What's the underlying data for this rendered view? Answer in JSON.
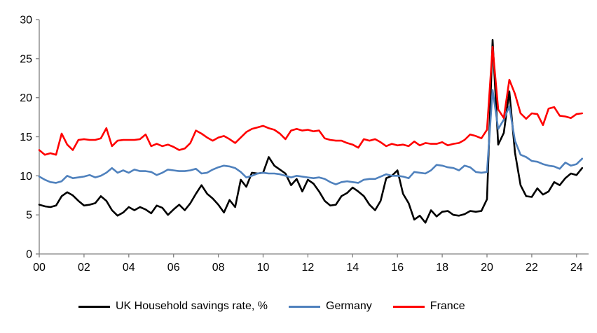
{
  "chart_data": {
    "type": "line",
    "title": "",
    "xlabel": "",
    "ylabel": "",
    "x_start": 2000.0,
    "x_step_years": 0.25,
    "xlim": [
      2000,
      2024.55
    ],
    "ylim": [
      0,
      30
    ],
    "grid": false,
    "legend_position": "bottom",
    "x_ticks": {
      "values": [
        2000,
        2002,
        2004,
        2006,
        2008,
        2010,
        2012,
        2014,
        2016,
        2018,
        2020,
        2022,
        2024
      ],
      "labels": [
        "00",
        "02",
        "04",
        "06",
        "08",
        "10",
        "12",
        "14",
        "16",
        "18",
        "20",
        "22",
        "24"
      ]
    },
    "y_ticks": {
      "values": [
        0,
        5,
        10,
        15,
        20,
        25,
        30
      ],
      "labels": [
        "0",
        "5",
        "10",
        "15",
        "20",
        "25",
        "30"
      ]
    },
    "series": [
      {
        "name": "UK Household savings rate, %",
        "slug": "uk",
        "color": "#000000",
        "values": [
          6.3,
          6.1,
          6.0,
          6.2,
          7.4,
          7.9,
          7.5,
          6.8,
          6.2,
          6.3,
          6.5,
          7.4,
          6.8,
          5.6,
          4.9,
          5.3,
          6.0,
          5.6,
          6.0,
          5.7,
          5.2,
          6.2,
          5.9,
          5.0,
          5.7,
          6.3,
          5.6,
          6.5,
          7.7,
          8.8,
          7.7,
          7.1,
          6.3,
          5.3,
          6.9,
          6.0,
          9.5,
          8.6,
          10.4,
          10.3,
          10.4,
          12.4,
          11.3,
          10.8,
          10.3,
          8.8,
          9.6,
          8.0,
          9.5,
          9.0,
          8.0,
          6.8,
          6.2,
          6.3,
          7.4,
          7.8,
          8.5,
          8.0,
          7.4,
          6.3,
          5.6,
          6.8,
          9.7,
          10.0,
          10.7,
          7.7,
          6.5,
          4.4,
          4.9,
          4.0,
          5.6,
          4.8,
          5.4,
          5.5,
          5.0,
          4.9,
          5.1,
          5.5,
          5.4,
          5.5,
          7.0,
          27.4,
          14.0,
          15.5,
          20.8,
          13.0,
          8.8,
          7.4,
          7.3,
          8.4,
          7.6,
          8.0,
          9.2,
          8.8,
          9.7,
          10.3,
          10.1,
          11.0
        ]
      },
      {
        "name": "Germany",
        "slug": "germany",
        "color": "#4F81BD",
        "values": [
          9.9,
          9.5,
          9.2,
          9.1,
          9.3,
          10.0,
          9.7,
          9.8,
          9.9,
          10.1,
          9.8,
          10.0,
          10.4,
          11.0,
          10.4,
          10.7,
          10.4,
          10.8,
          10.6,
          10.6,
          10.5,
          10.1,
          10.4,
          10.8,
          10.7,
          10.6,
          10.6,
          10.7,
          10.9,
          10.3,
          10.4,
          10.8,
          11.1,
          11.3,
          11.2,
          11.0,
          10.5,
          9.8,
          10.0,
          10.3,
          10.4,
          10.3,
          10.3,
          10.2,
          10.0,
          9.8,
          10.0,
          9.9,
          9.8,
          9.7,
          9.8,
          9.6,
          9.2,
          8.9,
          9.2,
          9.3,
          9.2,
          9.1,
          9.5,
          9.6,
          9.6,
          9.9,
          10.2,
          10.0,
          10.0,
          9.9,
          9.7,
          10.5,
          10.4,
          10.3,
          10.7,
          11.4,
          11.3,
          11.1,
          11.0,
          10.7,
          11.3,
          11.1,
          10.5,
          10.4,
          10.5,
          21.0,
          16.0,
          17.2,
          18.9,
          14.5,
          12.7,
          12.4,
          11.9,
          11.8,
          11.5,
          11.3,
          11.2,
          10.9,
          11.7,
          11.3,
          11.5,
          12.2
        ]
      },
      {
        "name": "France",
        "slug": "france",
        "color": "#FF0000",
        "values": [
          13.3,
          12.7,
          12.9,
          12.7,
          15.4,
          14.0,
          13.3,
          14.6,
          14.7,
          14.6,
          14.6,
          14.8,
          16.1,
          13.8,
          14.5,
          14.6,
          14.6,
          14.6,
          14.7,
          15.3,
          13.8,
          14.1,
          13.8,
          14.0,
          13.7,
          13.3,
          13.5,
          14.2,
          15.8,
          15.4,
          14.9,
          14.5,
          14.9,
          15.1,
          14.7,
          14.2,
          14.9,
          15.6,
          16.0,
          16.2,
          16.4,
          16.1,
          15.9,
          15.4,
          14.7,
          15.8,
          16.0,
          15.8,
          15.9,
          15.7,
          15.8,
          14.8,
          14.6,
          14.5,
          14.5,
          14.2,
          14.0,
          13.6,
          14.7,
          14.5,
          14.7,
          14.3,
          13.8,
          14.1,
          13.9,
          14.0,
          13.8,
          14.4,
          13.9,
          14.2,
          14.1,
          14.1,
          14.3,
          13.9,
          14.1,
          14.2,
          14.6,
          15.3,
          15.1,
          14.8,
          15.9,
          26.5,
          18.5,
          17.4,
          22.3,
          20.5,
          18.0,
          17.3,
          18.0,
          17.9,
          16.5,
          18.6,
          18.8,
          17.7,
          17.6,
          17.4,
          17.9,
          18.0
        ]
      }
    ],
    "axis_color": "#808080",
    "tick_label_color": "#000000",
    "line_width": 2.6
  }
}
